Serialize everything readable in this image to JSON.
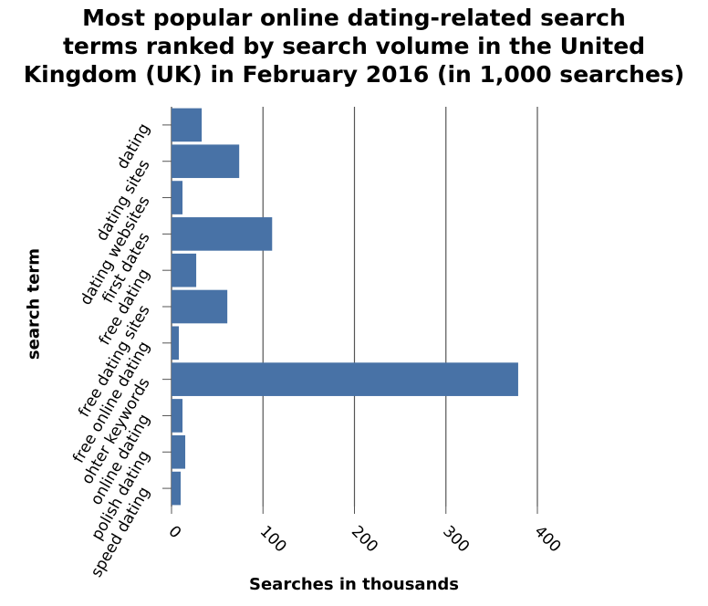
{
  "chart_data": {
    "type": "bar",
    "orientation": "horizontal",
    "title_lines": [
      "Most popular online dating-related search",
      "terms ranked by search volume in the United",
      "Kingdom (UK) in February 2016 (in 1,000 searches)"
    ],
    "xlabel": "Searches in thousands",
    "ylabel": "search term",
    "categories": [
      "dating",
      "dating sites",
      "dating websites",
      "first dates",
      "free dating",
      "free dating sites",
      "free online dating",
      "ohter keywords",
      "online dating",
      "polish dating",
      "speed dating"
    ],
    "values": [
      33,
      74,
      12,
      110,
      27,
      61,
      8,
      379,
      12,
      15,
      10
    ],
    "xlim": [
      0,
      400
    ],
    "xticks": [
      "0",
      "100",
      "200",
      "300",
      "400"
    ],
    "grid": "vertical",
    "bar_color": "#4872a6"
  }
}
